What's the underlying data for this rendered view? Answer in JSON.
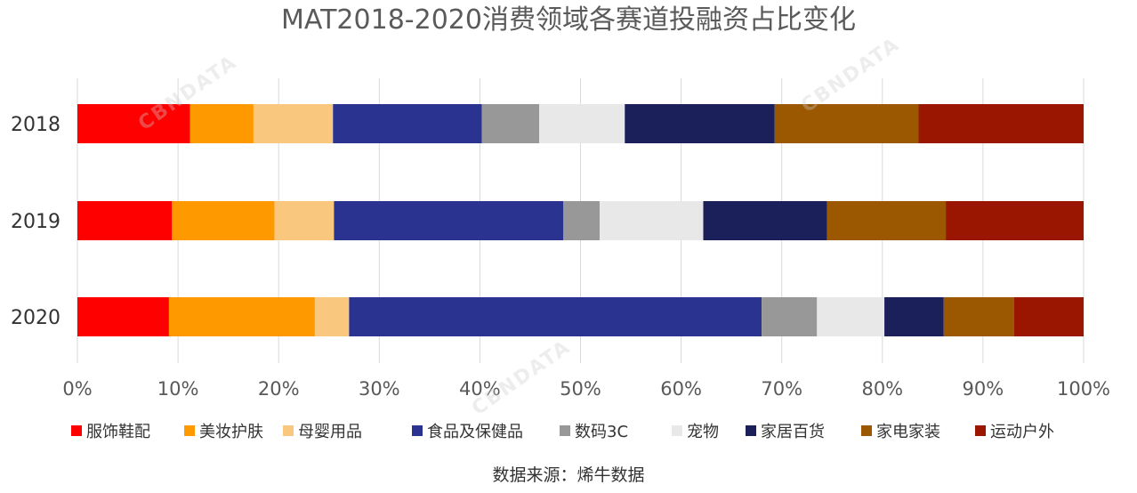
{
  "chart_data": {
    "type": "bar",
    "orientation": "horizontal",
    "stacked": "percent",
    "title": "MAT2018-2020消费领域各赛道投融资占比变化",
    "categories": [
      "2018",
      "2019",
      "2020"
    ],
    "xlim": [
      0,
      100
    ],
    "x_ticks": [
      "0%",
      "10%",
      "20%",
      "30%",
      "40%",
      "50%",
      "60%",
      "70%",
      "80%",
      "90%",
      "100%"
    ],
    "grid": true,
    "legend": "bottom",
    "series": [
      {
        "name": "服饰鞋配",
        "color": "#ff0000",
        "values": [
          11.2,
          9.4,
          9.1
        ]
      },
      {
        "name": "美妆护肤",
        "color": "#ff9900",
        "values": [
          6.3,
          10.2,
          14.5
        ]
      },
      {
        "name": "母婴用品",
        "color": "#fac77f",
        "values": [
          7.9,
          5.9,
          3.4
        ]
      },
      {
        "name": "食品及保健品",
        "color": "#2b3391",
        "values": [
          14.8,
          22.8,
          41.0
        ]
      },
      {
        "name": "数码3C",
        "color": "#989898",
        "values": [
          5.7,
          3.6,
          5.5
        ]
      },
      {
        "name": "宠物",
        "color": "#e8e8e8",
        "values": [
          8.5,
          10.3,
          6.7
        ]
      },
      {
        "name": "家居百货",
        "color": "#1c205a",
        "values": [
          14.9,
          12.3,
          5.9
        ]
      },
      {
        "name": "家电家装",
        "color": "#9c5800",
        "values": [
          14.3,
          11.8,
          7.0
        ]
      },
      {
        "name": "运动户外",
        "color": "#9b1600",
        "values": [
          16.4,
          13.7,
          6.9
        ]
      }
    ],
    "source": "数据来源：烯牛数据"
  },
  "watermark": "CBNDATA"
}
